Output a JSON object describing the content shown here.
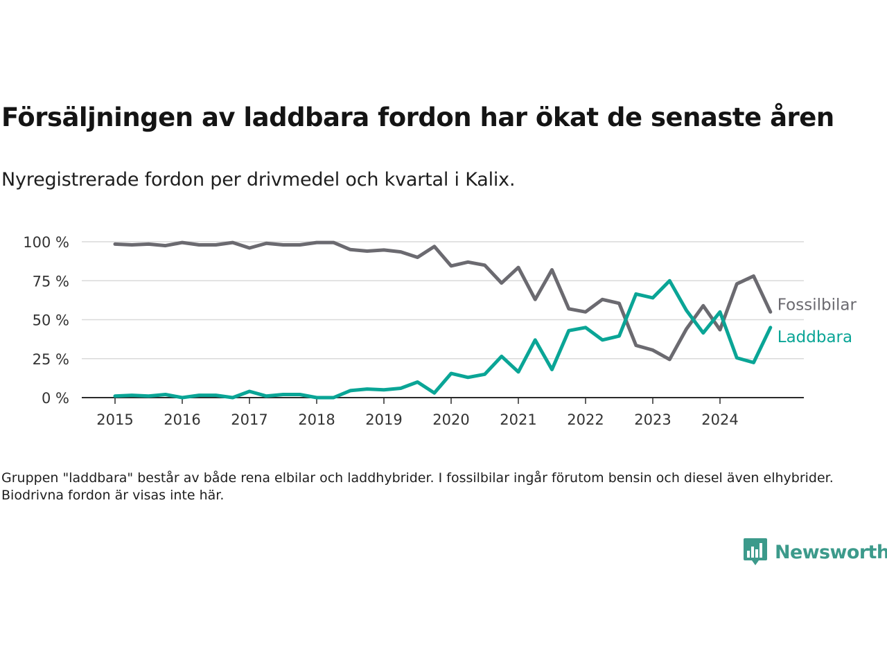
{
  "title": "Försäljningen av laddbara fordon har ökat de senaste åren",
  "subtitle": "Nyregistrerade fordon per drivmedel och kvartal i Kalix.",
  "note": "Gruppen \"laddbara\" består av både rena elbilar och laddhybrider. I fossilbilar ingår förutom bensin och diesel även elhybrider. Biodrivna fordon är visas inte här.",
  "brand": {
    "name": "Newsworthy",
    "icon": "newsworthy-logo-icon",
    "color": "#3c9a8b"
  },
  "chart_data": {
    "type": "line",
    "x_tick_labels": [
      "2015",
      "2016",
      "2017",
      "2018",
      "2019",
      "2020",
      "2021",
      "2022",
      "2023",
      "2024"
    ],
    "y_tick_labels": [
      "0 %",
      "25 %",
      "50 %",
      "75 %",
      "100 %"
    ],
    "y_ticks": [
      0,
      25,
      50,
      75,
      100
    ],
    "ylim": [
      0,
      100
    ],
    "x": [
      "2015 K1",
      "2015 K2",
      "2015 K3",
      "2015 K4",
      "2016 K1",
      "2016 K2",
      "2016 K3",
      "2016 K4",
      "2017 K1",
      "2017 K2",
      "2017 K3",
      "2017 K4",
      "2018 K1",
      "2018 K2",
      "2018 K3",
      "2018 K4",
      "2019 K1",
      "2019 K2",
      "2019 K3",
      "2019 K4",
      "2020 K1",
      "2020 K2",
      "2020 K3",
      "2020 K4",
      "2021 K1",
      "2021 K2",
      "2021 K3",
      "2021 K4",
      "2022 K1",
      "2022 K2",
      "2022 K3",
      "2022 K4",
      "2023 K1",
      "2023 K2",
      "2023 K3",
      "2023 K4",
      "2024 K1",
      "2024 K2",
      "2024 K3",
      "2024 K4"
    ],
    "grid": true,
    "legend": "direct labels at line ends (right)",
    "series": [
      {
        "name": "Fossilbilar",
        "color": "#6b6a70",
        "values": [
          98.5,
          98.0,
          98.5,
          97.5,
          99.5,
          98.0,
          98.0,
          99.5,
          96.0,
          99.0,
          98.0,
          98.0,
          99.5,
          99.5,
          95.0,
          94.0,
          94.7,
          93.5,
          90.0,
          97.0,
          84.5,
          87.0,
          85.0,
          73.5,
          83.5,
          63.0,
          82.0,
          57.0,
          55.0,
          63.0,
          60.5,
          33.5,
          30.5,
          24.5,
          44.0,
          59.0,
          43.5,
          73.0,
          78.0,
          55.0
        ]
      },
      {
        "name": "Laddbara",
        "color": "#0aa596",
        "values": [
          1.0,
          1.5,
          1.0,
          2.0,
          0.0,
          1.5,
          1.5,
          0.0,
          4.0,
          1.0,
          2.0,
          2.0,
          0.0,
          0.0,
          4.5,
          5.5,
          5.0,
          6.0,
          10.0,
          3.0,
          15.5,
          13.0,
          15.0,
          26.5,
          16.5,
          37.0,
          18.0,
          43.0,
          45.0,
          37.0,
          39.5,
          66.5,
          64.0,
          75.0,
          56.0,
          41.5,
          55.0,
          25.5,
          22.5,
          45.0
        ]
      }
    ]
  }
}
